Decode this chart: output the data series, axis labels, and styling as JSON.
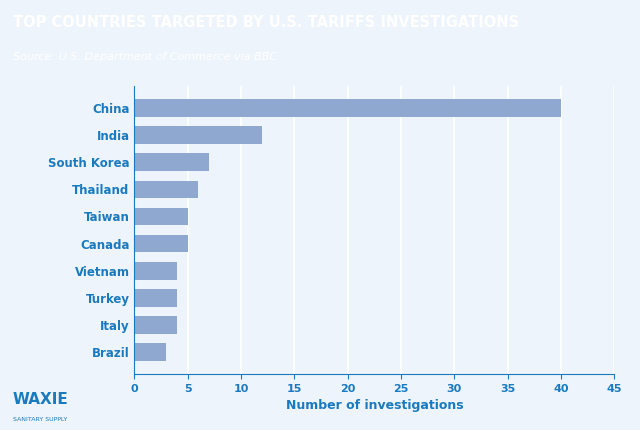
{
  "title": "TOP COUNTRIES TARGETED BY U.S. TARIFFS INVESTIGATIONS",
  "subtitle": "Source: U.S. Department of Commerce via BBC",
  "xlabel": "Number of investigations",
  "countries": [
    "China",
    "India",
    "South Korea",
    "Thailand",
    "Taiwan",
    "Canada",
    "Vietnam",
    "Turkey",
    "Italy",
    "Brazil"
  ],
  "values": [
    40,
    12,
    7,
    6,
    5,
    5,
    4,
    4,
    4,
    3
  ],
  "bar_color": "#8fa8d0",
  "header_bg": "#1a7abf",
  "chart_bg": "#eef4fb",
  "title_color": "#ffffff",
  "subtitle_color": "#ffffff",
  "axis_color": "#1a7abf",
  "label_color": "#1a7abf",
  "tick_color": "#1a7abf",
  "grid_color": "#ffffff",
  "xlim": [
    0,
    45
  ],
  "xticks": [
    0,
    5,
    10,
    15,
    20,
    25,
    30,
    35,
    40,
    45
  ]
}
